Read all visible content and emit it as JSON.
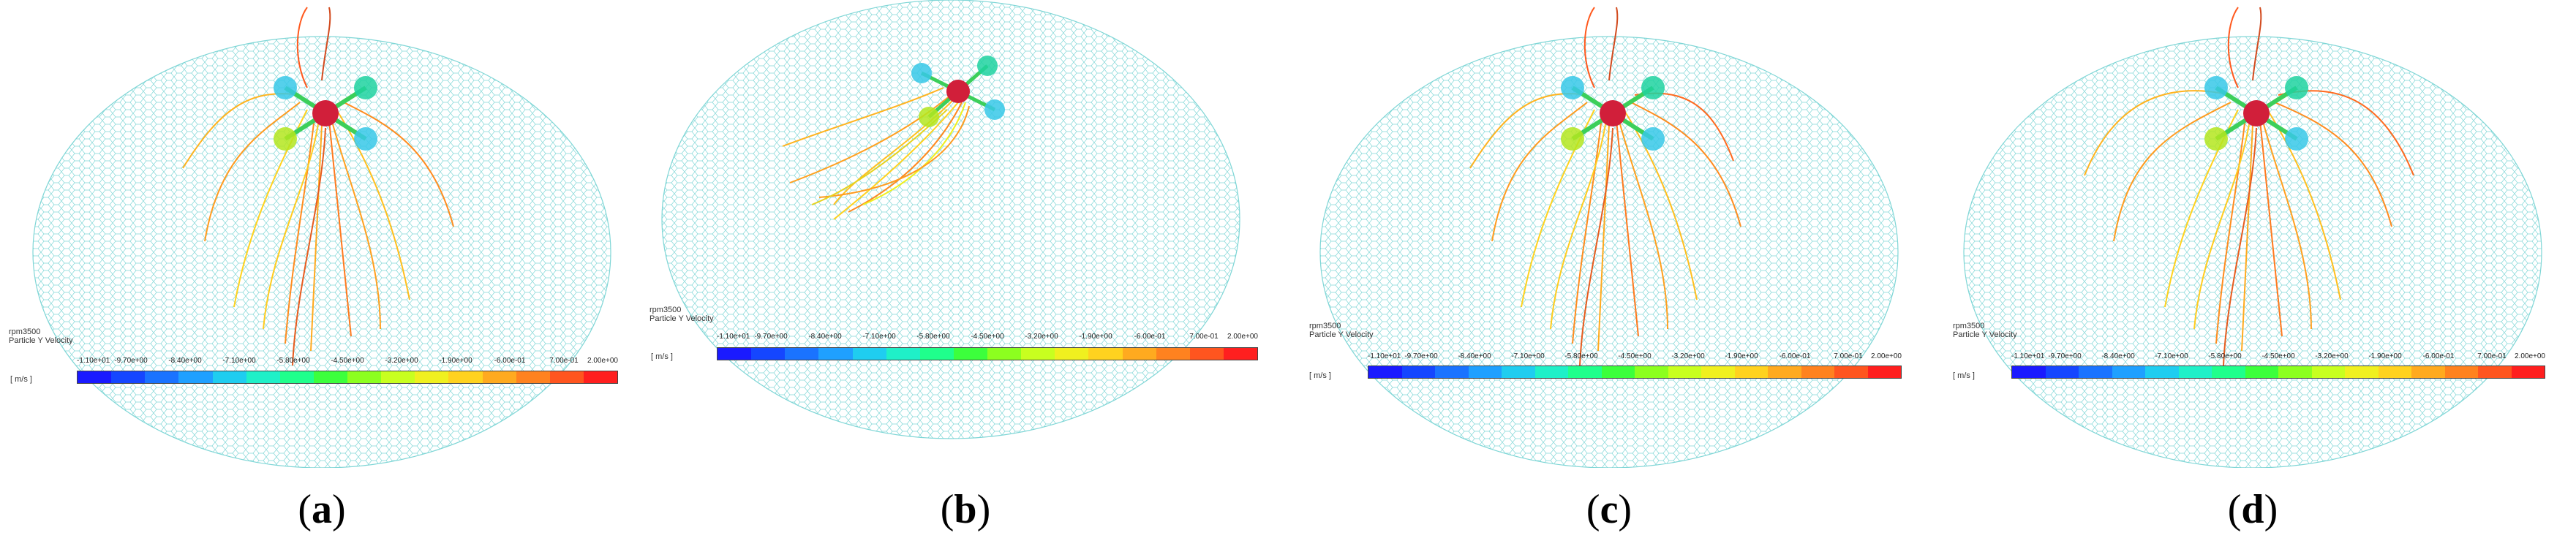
{
  "colors": {
    "mesh": "#7fd6d6",
    "rotor": "#d11f3a",
    "colormap": [
      "#1a1aff",
      "#1546ff",
      "#1a73ff",
      "#1fa0ff",
      "#1fcdf0",
      "#1ff0c8",
      "#1fff8c",
      "#3cff3c",
      "#8cff1f",
      "#c8ff1f",
      "#f0f01f",
      "#ffd21f",
      "#ffaa1f",
      "#ff821f",
      "#ff551f",
      "#ff1f1f"
    ]
  },
  "panels": [
    {
      "caption_letter": "a",
      "rpm_label": "rpm3500",
      "var_label": "Particle Y Velocity",
      "unit": "[ m/s ]",
      "ticks": [
        "-1.10e+01",
        "-9.70e+00",
        "-8.40e+00",
        "-7.10e+00",
        "-5.80e+00",
        "-4.50e+00",
        "-3.20e+00",
        "-1.90e+00",
        "-6.00e-01",
        "7.00e-01",
        "2.00e+00"
      ]
    },
    {
      "caption_letter": "b",
      "rpm_label": "rpm3500",
      "var_label": "Particle Y Velocity",
      "unit": "[ m/s ]",
      "ticks": [
        "-1.10e+01",
        "-9.70e+00",
        "-8.40e+00",
        "-7.10e+00",
        "-5.80e+00",
        "-4.50e+00",
        "-3.20e+00",
        "-1.90e+00",
        "-6.00e-01",
        "7.00e-01",
        "2.00e+00"
      ]
    },
    {
      "caption_letter": "c",
      "rpm_label": "rpm3500",
      "var_label": "Particle Y Velocity",
      "unit": "[ m/s ]",
      "ticks": [
        "-1.10e+01",
        "-9.70e+00",
        "-8.40e+00",
        "-7.10e+00",
        "-5.80e+00",
        "-4.50e+00",
        "-3.20e+00",
        "-1.90e+00",
        "-6.00e-01",
        "7.00e-01",
        "2.00e+00"
      ]
    },
    {
      "caption_letter": "d",
      "rpm_label": "rpm3500",
      "var_label": "Particle Y Velocity",
      "unit": "[ m/s ]",
      "ticks": [
        "-1.10e+01",
        "-9.70e+00",
        "-8.40e+00",
        "-7.10e+00",
        "-5.80e+00",
        "-4.50e+00",
        "-3.20e+00",
        "-1.90e+00",
        "-6.00e-01",
        "7.00e-01",
        "2.00e+00"
      ]
    }
  ]
}
